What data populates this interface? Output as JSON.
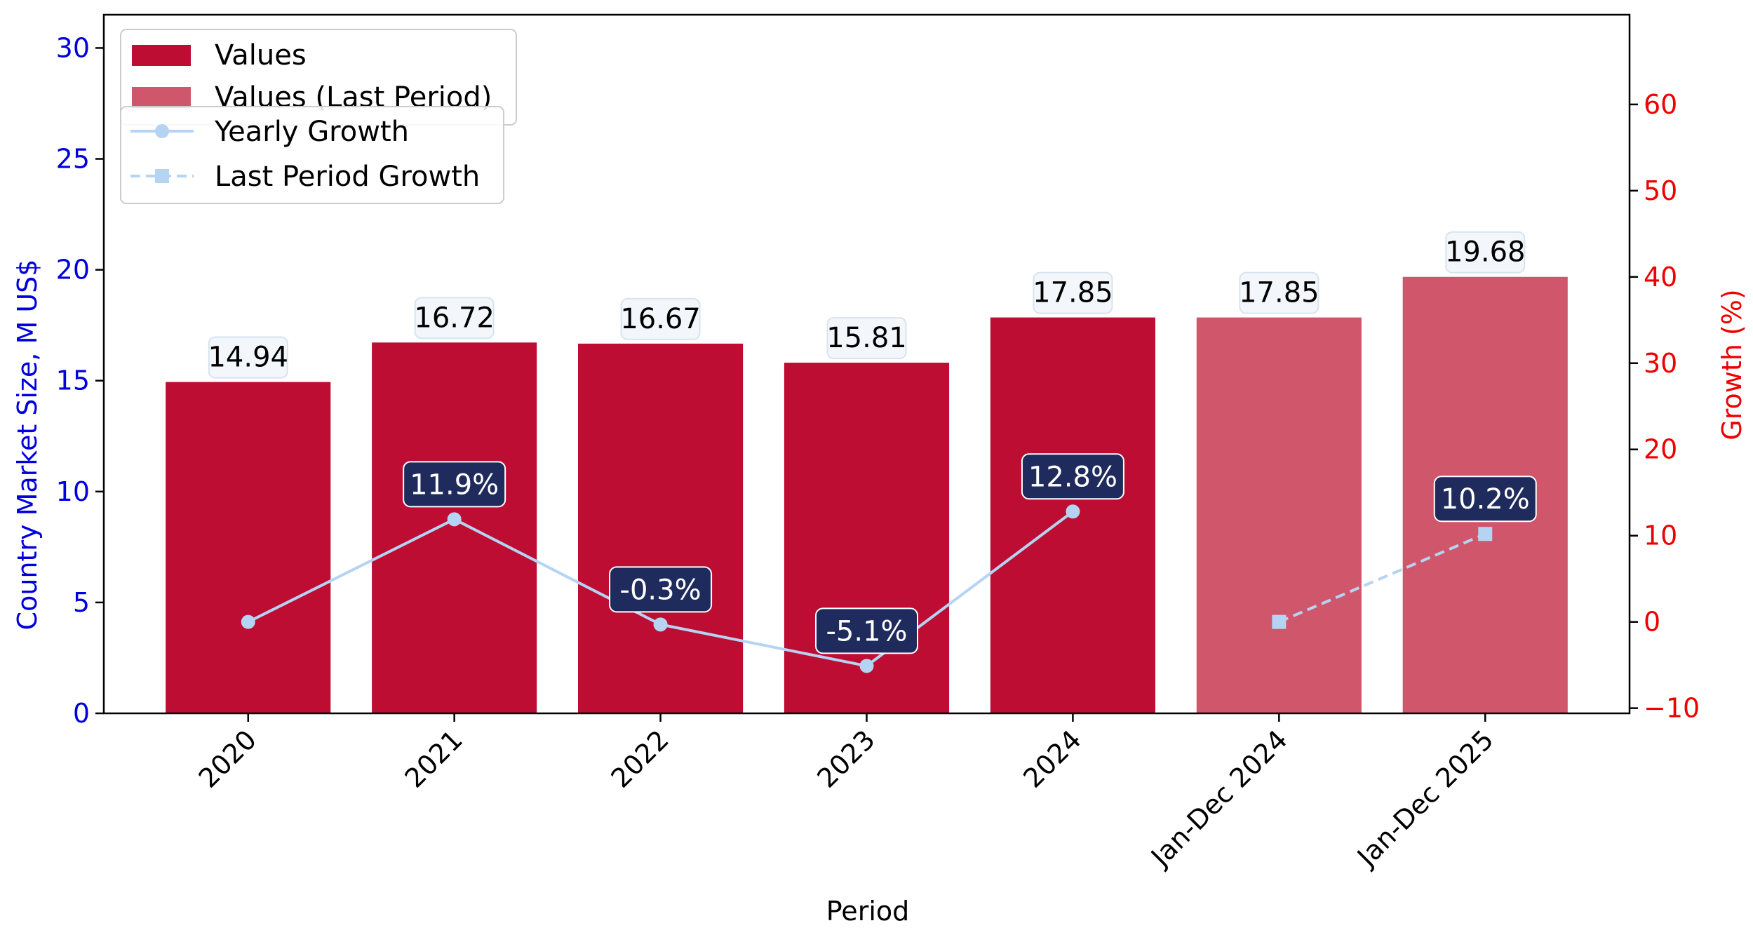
{
  "chart_data": {
    "type": "bar",
    "xlabel": "Period",
    "ylabel": "Country Market Size, M US$",
    "y2label": "Growth (%)",
    "ylim": [
      0,
      31.5
    ],
    "y2lim": [
      -10.6,
      70.4
    ],
    "yticks": [
      0,
      5,
      10,
      15,
      20,
      25,
      30
    ],
    "y2ticks": [
      -10,
      0,
      10,
      20,
      30,
      40,
      50,
      60
    ],
    "categories": [
      "2020",
      "2021",
      "2022",
      "2023",
      "2024",
      "Jan-Dec 2024",
      "Jan-Dec 2025"
    ],
    "series": [
      {
        "name": "Values",
        "kind": "bar",
        "values": [
          14.94,
          16.72,
          16.67,
          15.81,
          17.85,
          null,
          null
        ],
        "labels": [
          "14.94",
          "16.72",
          "16.67",
          "15.81",
          "17.85",
          "",
          ""
        ]
      },
      {
        "name": "Values (Last Period)",
        "kind": "bar",
        "values": [
          null,
          null,
          null,
          null,
          null,
          17.85,
          19.68
        ],
        "labels": [
          "",
          "",
          "",
          "",
          "",
          "17.85",
          "19.68"
        ]
      },
      {
        "name": "Yearly Growth",
        "kind": "line",
        "axis": "right",
        "values": [
          0,
          11.9,
          -0.3,
          -5.1,
          12.8,
          null,
          null
        ],
        "labels": [
          "",
          "11.9%",
          "-0.3%",
          "-5.1%",
          "12.8%",
          "",
          ""
        ]
      },
      {
        "name": "Last Period Growth",
        "kind": "line",
        "axis": "right",
        "style": "dashed",
        "values": [
          null,
          null,
          null,
          null,
          null,
          0,
          10.2
        ],
        "labels": [
          "",
          "",
          "",
          "",
          "",
          "",
          "10.2%"
        ]
      }
    ],
    "legend": [
      "Values",
      "Values (Last Period)",
      "Yearly Growth",
      "Last Period Growth"
    ],
    "legend_placement": "top-left",
    "colors": {
      "bar": "#bd0d33",
      "bar_last": "#d0566c",
      "line": "#b5d4f4",
      "growth_label_bg": "#1f2b5c",
      "value_label_bg": "#f3f7fb",
      "left_axis": "#0000dd",
      "right_axis": "#ee0000"
    }
  }
}
